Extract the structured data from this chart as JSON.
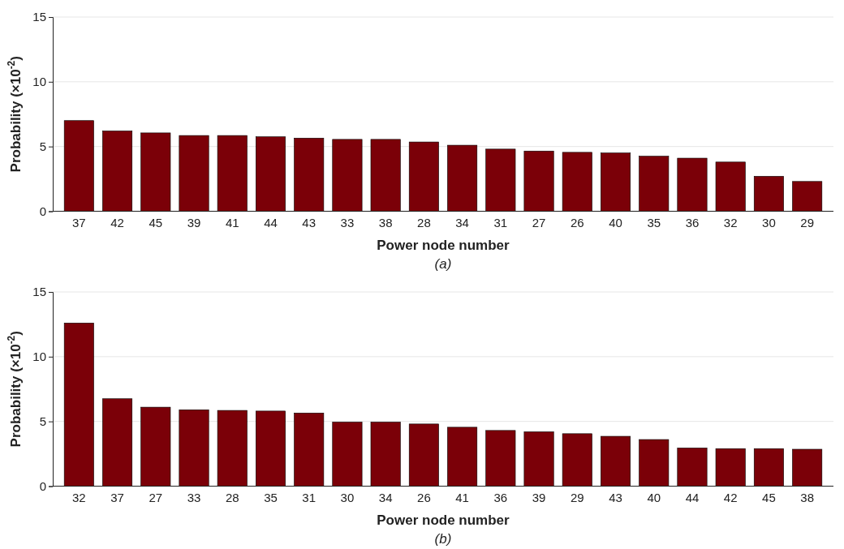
{
  "chart_data": [
    {
      "type": "bar",
      "categories": [
        "37",
        "42",
        "45",
        "39",
        "41",
        "44",
        "43",
        "33",
        "38",
        "28",
        "34",
        "31",
        "27",
        "26",
        "40",
        "35",
        "36",
        "32",
        "30",
        "29"
      ],
      "values": [
        7.0,
        6.2,
        6.05,
        5.85,
        5.85,
        5.75,
        5.65,
        5.55,
        5.55,
        5.35,
        5.1,
        4.8,
        4.65,
        4.55,
        4.5,
        4.25,
        4.1,
        3.8,
        2.7,
        2.3
      ],
      "color": "#7b0008",
      "ylim": [
        0,
        15
      ],
      "yticks": [
        0,
        5,
        10,
        15
      ],
      "grid": "y",
      "xlabel": "Power node number",
      "ylabel": "Probability (×10$^{-2}$)",
      "annotations": [
        "(a)"
      ]
    },
    {
      "type": "bar",
      "categories": [
        "32",
        "37",
        "27",
        "33",
        "28",
        "35",
        "31",
        "30",
        "34",
        "26",
        "41",
        "36",
        "39",
        "29",
        "43",
        "40",
        "44",
        "42",
        "45",
        "38"
      ],
      "values": [
        12.6,
        6.75,
        6.1,
        5.9,
        5.85,
        5.8,
        5.65,
        4.95,
        4.95,
        4.8,
        4.55,
        4.3,
        4.2,
        4.05,
        3.85,
        3.6,
        2.95,
        2.9,
        2.9,
        2.85
      ],
      "color": "#7b0008",
      "ylim": [
        0,
        15
      ],
      "yticks": [
        0,
        5,
        10,
        15
      ],
      "grid": "y",
      "xlabel": "Power node number",
      "ylabel": "Probability (×10$^{-2}$)",
      "annotations": [
        "(b)"
      ]
    }
  ]
}
